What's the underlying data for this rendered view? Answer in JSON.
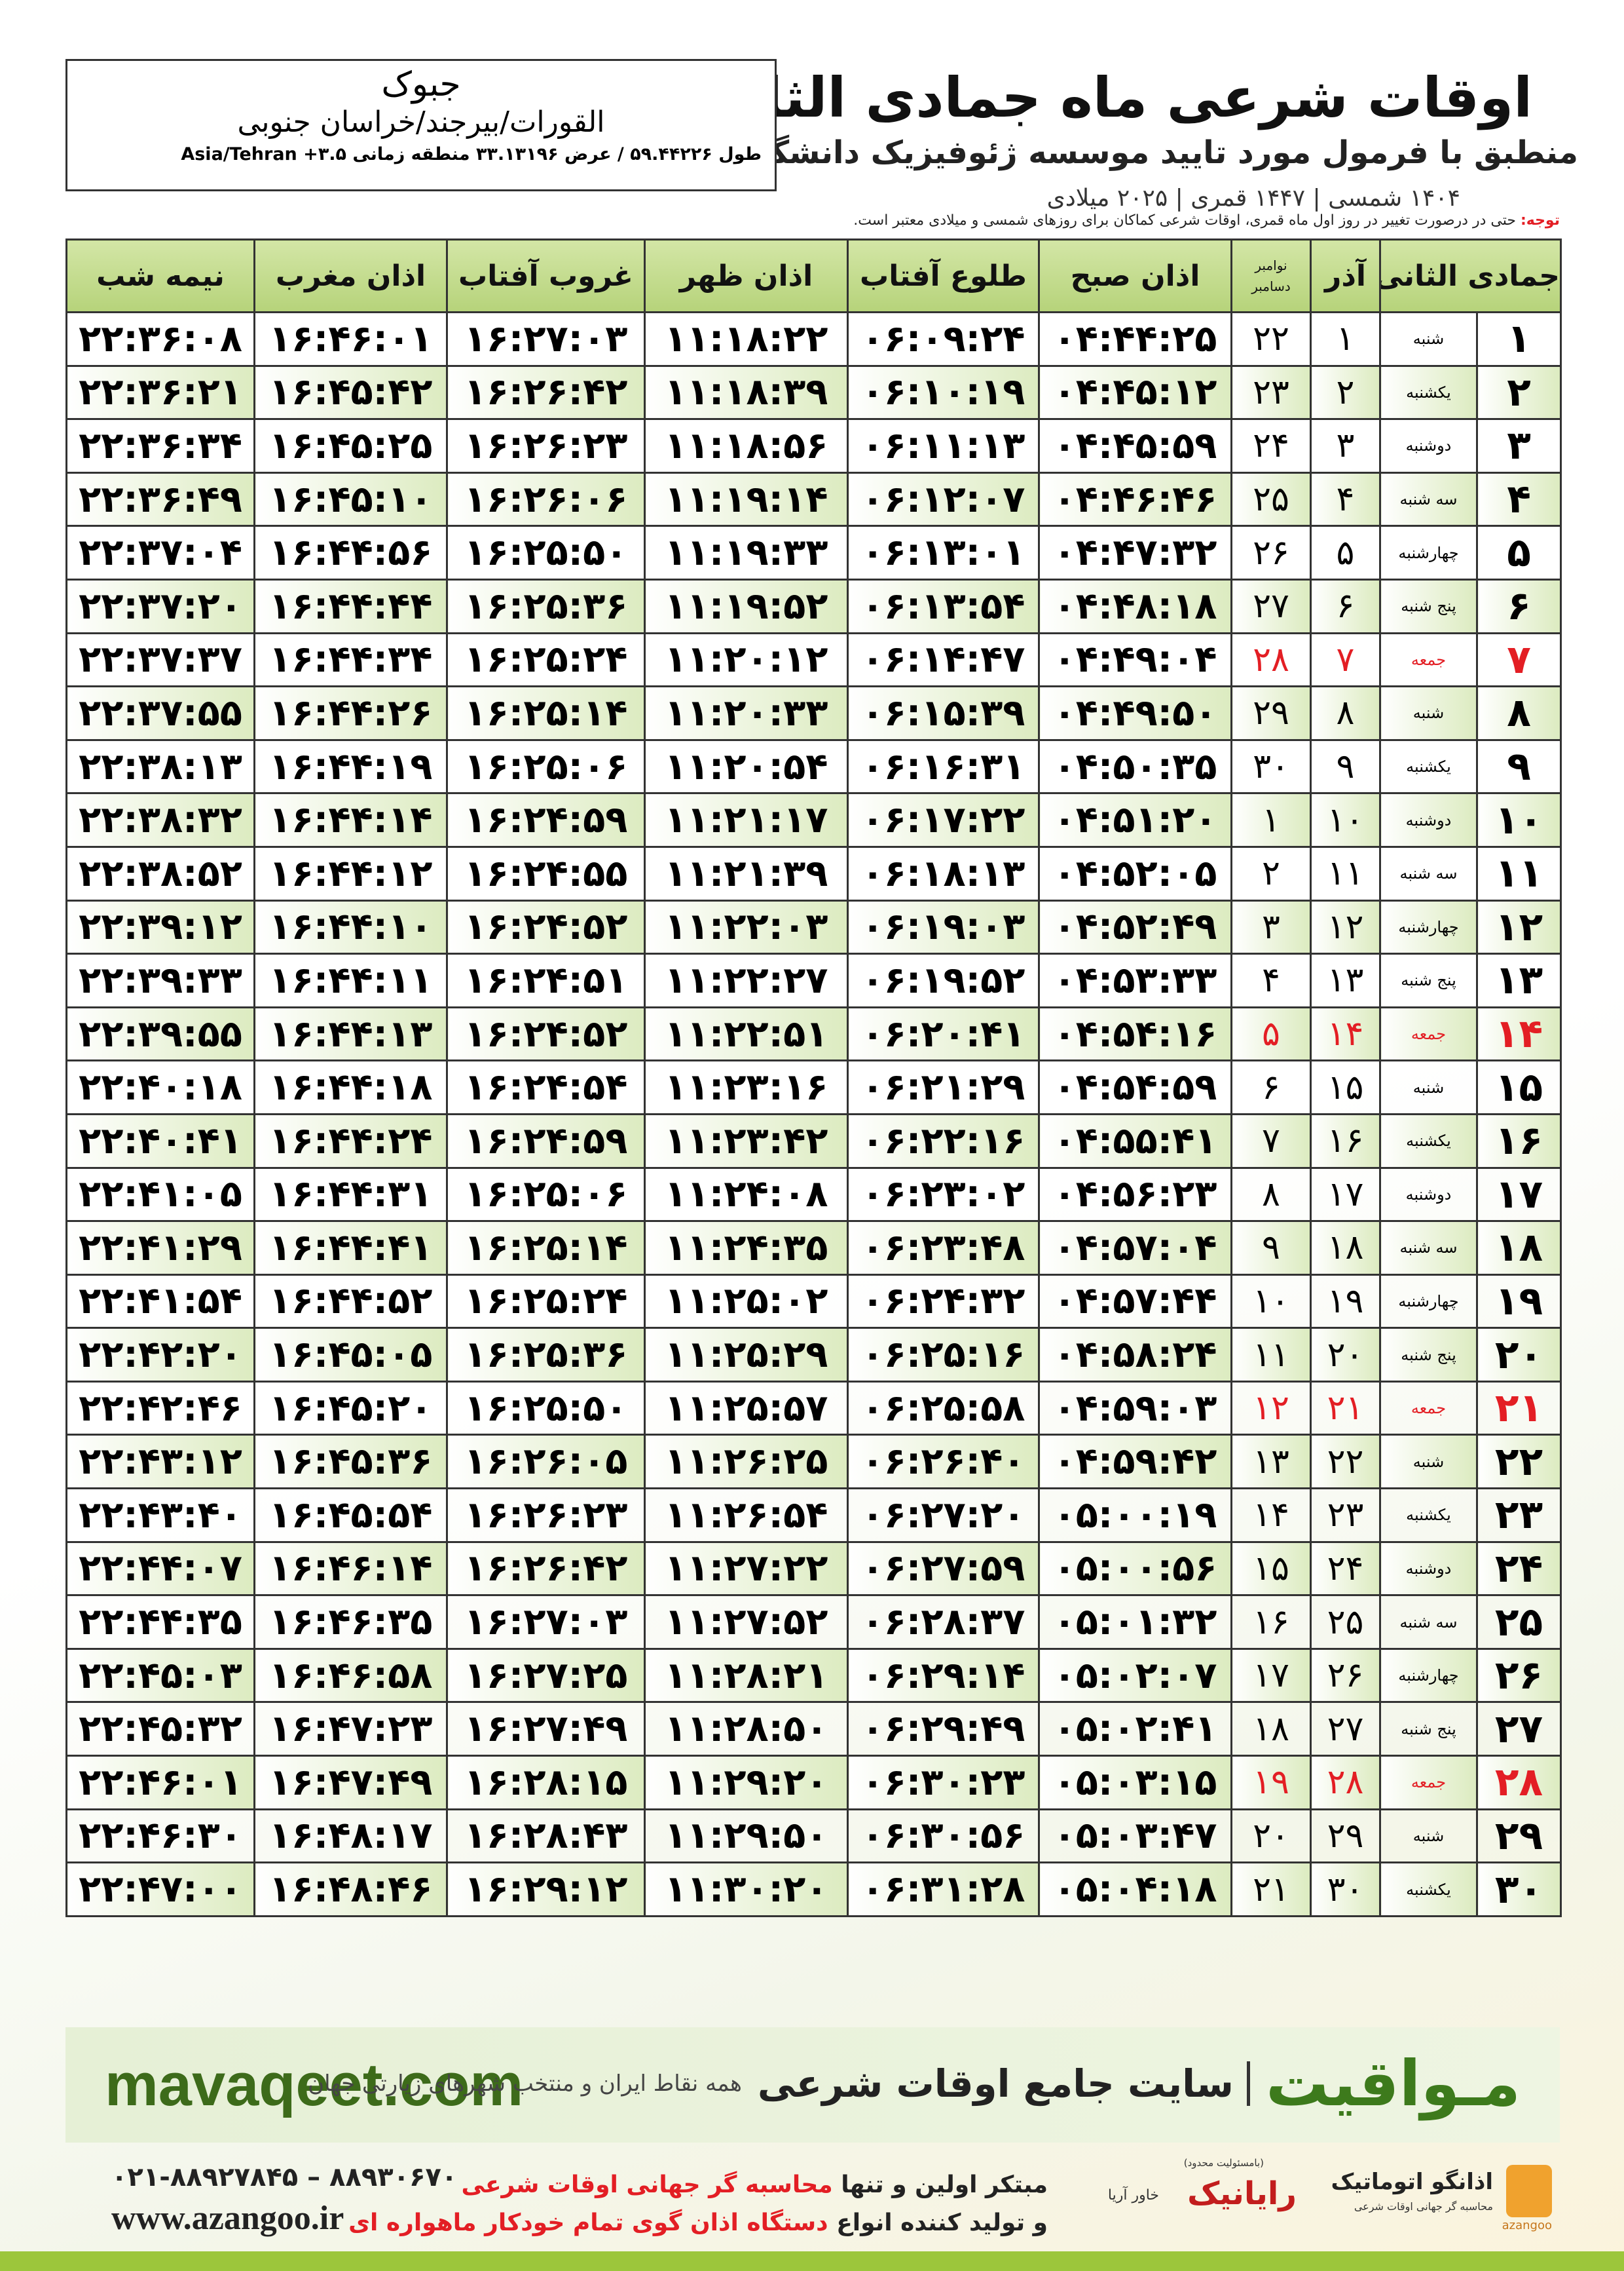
{
  "header": {
    "title": "اوقات شرعی ماه جمادی الثانی",
    "subtitle": "منطبق با فرمول مورد تایید موسسه ژئوفیزیک دانشگاه تهران",
    "dates": "۱۴۰۴ شمسی | ۱۴۴۷ قمری | ۲۰۲۵ میلادی"
  },
  "location": {
    "city": "جبوک",
    "region": "القورات/بیرجند/خراسان جنوبی",
    "coords": "طول ۵۹.۴۴۲۲۶ / عرض ۳۳.۱۳۱۹۶ منطقه زمانی ۳.۵+ Asia/Tehran"
  },
  "note": {
    "label": "توجه:",
    "text": "حتی در درصورت تغییر در روز اول ماه قمری، اوقات شرعی کماکان برای روزهای شمسی و میلادی معتبر است."
  },
  "table": {
    "columns": [
      "جمادی الثانی",
      "آذر",
      [
        "نوامبر",
        "دسامبر"
      ],
      "اذان صبح",
      "طلوع آفتاب",
      "اذان ظهر",
      "غروب آفتاب",
      "اذان مغرب",
      "نیمه شب"
    ],
    "rows": [
      [
        "۱",
        "شنبه",
        "۱",
        "۲۲",
        "۰۴:۴۴:۲۵",
        "۰۶:۰۹:۲۴",
        "۱۱:۱۸:۲۲",
        "۱۶:۲۷:۰۳",
        "۱۶:۴۶:۰۱",
        "۲۲:۳۶:۰۸"
      ],
      [
        "۲",
        "یکشنبه",
        "۲",
        "۲۳",
        "۰۴:۴۵:۱۲",
        "۰۶:۱۰:۱۹",
        "۱۱:۱۸:۳۹",
        "۱۶:۲۶:۴۲",
        "۱۶:۴۵:۴۲",
        "۲۲:۳۶:۲۱"
      ],
      [
        "۳",
        "دوشنبه",
        "۳",
        "۲۴",
        "۰۴:۴۵:۵۹",
        "۰۶:۱۱:۱۳",
        "۱۱:۱۸:۵۶",
        "۱۶:۲۶:۲۳",
        "۱۶:۴۵:۲۵",
        "۲۲:۳۶:۳۴"
      ],
      [
        "۴",
        "سه شنبه",
        "۴",
        "۲۵",
        "۰۴:۴۶:۴۶",
        "۰۶:۱۲:۰۷",
        "۱۱:۱۹:۱۴",
        "۱۶:۲۶:۰۶",
        "۱۶:۴۵:۱۰",
        "۲۲:۳۶:۴۹"
      ],
      [
        "۵",
        "چهارشنبه",
        "۵",
        "۲۶",
        "۰۴:۴۷:۳۲",
        "۰۶:۱۳:۰۱",
        "۱۱:۱۹:۳۳",
        "۱۶:۲۵:۵۰",
        "۱۶:۴۴:۵۶",
        "۲۲:۳۷:۰۴"
      ],
      [
        "۶",
        "پنج شنبه",
        "۶",
        "۲۷",
        "۰۴:۴۸:۱۸",
        "۰۶:۱۳:۵۴",
        "۱۱:۱۹:۵۲",
        "۱۶:۲۵:۳۶",
        "۱۶:۴۴:۴۴",
        "۲۲:۳۷:۲۰"
      ],
      [
        "۷",
        "جمعه",
        "۷",
        "۲۸",
        "۰۴:۴۹:۰۴",
        "۰۶:۱۴:۴۷",
        "۱۱:۲۰:۱۲",
        "۱۶:۲۵:۲۴",
        "۱۶:۴۴:۳۴",
        "۲۲:۳۷:۳۷"
      ],
      [
        "۸",
        "شنبه",
        "۸",
        "۲۹",
        "۰۴:۴۹:۵۰",
        "۰۶:۱۵:۳۹",
        "۱۱:۲۰:۳۳",
        "۱۶:۲۵:۱۴",
        "۱۶:۴۴:۲۶",
        "۲۲:۳۷:۵۵"
      ],
      [
        "۹",
        "یکشنبه",
        "۹",
        "۳۰",
        "۰۴:۵۰:۳۵",
        "۰۶:۱۶:۳۱",
        "۱۱:۲۰:۵۴",
        "۱۶:۲۵:۰۶",
        "۱۶:۴۴:۱۹",
        "۲۲:۳۸:۱۳"
      ],
      [
        "۱۰",
        "دوشنبه",
        "۱۰",
        "۱",
        "۰۴:۵۱:۲۰",
        "۰۶:۱۷:۲۲",
        "۱۱:۲۱:۱۷",
        "۱۶:۲۴:۵۹",
        "۱۶:۴۴:۱۴",
        "۲۲:۳۸:۳۲"
      ],
      [
        "۱۱",
        "سه شنبه",
        "۱۱",
        "۲",
        "۰۴:۵۲:۰۵",
        "۰۶:۱۸:۱۳",
        "۱۱:۲۱:۳۹",
        "۱۶:۲۴:۵۵",
        "۱۶:۴۴:۱۲",
        "۲۲:۳۸:۵۲"
      ],
      [
        "۱۲",
        "چهارشنبه",
        "۱۲",
        "۳",
        "۰۴:۵۲:۴۹",
        "۰۶:۱۹:۰۳",
        "۱۱:۲۲:۰۳",
        "۱۶:۲۴:۵۲",
        "۱۶:۴۴:۱۰",
        "۲۲:۳۹:۱۲"
      ],
      [
        "۱۳",
        "پنج شنبه",
        "۱۳",
        "۴",
        "۰۴:۵۳:۳۳",
        "۰۶:۱۹:۵۲",
        "۱۱:۲۲:۲۷",
        "۱۶:۲۴:۵۱",
        "۱۶:۴۴:۱۱",
        "۲۲:۳۹:۳۳"
      ],
      [
        "۱۴",
        "جمعه",
        "۱۴",
        "۵",
        "۰۴:۵۴:۱۶",
        "۰۶:۲۰:۴۱",
        "۱۱:۲۲:۵۱",
        "۱۶:۲۴:۵۲",
        "۱۶:۴۴:۱۳",
        "۲۲:۳۹:۵۵"
      ],
      [
        "۱۵",
        "شنبه",
        "۱۵",
        "۶",
        "۰۴:۵۴:۵۹",
        "۰۶:۲۱:۲۹",
        "۱۱:۲۳:۱۶",
        "۱۶:۲۴:۵۴",
        "۱۶:۴۴:۱۸",
        "۲۲:۴۰:۱۸"
      ],
      [
        "۱۶",
        "یکشنبه",
        "۱۶",
        "۷",
        "۰۴:۵۵:۴۱",
        "۰۶:۲۲:۱۶",
        "۱۱:۲۳:۴۲",
        "۱۶:۲۴:۵۹",
        "۱۶:۴۴:۲۴",
        "۲۲:۴۰:۴۱"
      ],
      [
        "۱۷",
        "دوشنبه",
        "۱۷",
        "۸",
        "۰۴:۵۶:۲۳",
        "۰۶:۲۳:۰۲",
        "۱۱:۲۴:۰۸",
        "۱۶:۲۵:۰۶",
        "۱۶:۴۴:۳۱",
        "۲۲:۴۱:۰۵"
      ],
      [
        "۱۸",
        "سه شنبه",
        "۱۸",
        "۹",
        "۰۴:۵۷:۰۴",
        "۰۶:۲۳:۴۸",
        "۱۱:۲۴:۳۵",
        "۱۶:۲۵:۱۴",
        "۱۶:۴۴:۴۱",
        "۲۲:۴۱:۲۹"
      ],
      [
        "۱۹",
        "چهارشنبه",
        "۱۹",
        "۱۰",
        "۰۴:۵۷:۴۴",
        "۰۶:۲۴:۳۲",
        "۱۱:۲۵:۰۲",
        "۱۶:۲۵:۲۴",
        "۱۶:۴۴:۵۲",
        "۲۲:۴۱:۵۴"
      ],
      [
        "۲۰",
        "پنج شنبه",
        "۲۰",
        "۱۱",
        "۰۴:۵۸:۲۴",
        "۰۶:۲۵:۱۶",
        "۱۱:۲۵:۲۹",
        "۱۶:۲۵:۳۶",
        "۱۶:۴۵:۰۵",
        "۲۲:۴۲:۲۰"
      ],
      [
        "۲۱",
        "جمعه",
        "۲۱",
        "۱۲",
        "۰۴:۵۹:۰۳",
        "۰۶:۲۵:۵۸",
        "۱۱:۲۵:۵۷",
        "۱۶:۲۵:۵۰",
        "۱۶:۴۵:۲۰",
        "۲۲:۴۲:۴۶"
      ],
      [
        "۲۲",
        "شنبه",
        "۲۲",
        "۱۳",
        "۰۴:۵۹:۴۲",
        "۰۶:۲۶:۴۰",
        "۱۱:۲۶:۲۵",
        "۱۶:۲۶:۰۵",
        "۱۶:۴۵:۳۶",
        "۲۲:۴۳:۱۲"
      ],
      [
        "۲۳",
        "یکشنبه",
        "۲۳",
        "۱۴",
        "۰۵:۰۰:۱۹",
        "۰۶:۲۷:۲۰",
        "۱۱:۲۶:۵۴",
        "۱۶:۲۶:۲۳",
        "۱۶:۴۵:۵۴",
        "۲۲:۴۳:۴۰"
      ],
      [
        "۲۴",
        "دوشنبه",
        "۲۴",
        "۱۵",
        "۰۵:۰۰:۵۶",
        "۰۶:۲۷:۵۹",
        "۱۱:۲۷:۲۲",
        "۱۶:۲۶:۴۲",
        "۱۶:۴۶:۱۴",
        "۲۲:۴۴:۰۷"
      ],
      [
        "۲۵",
        "سه شنبه",
        "۲۵",
        "۱۶",
        "۰۵:۰۱:۳۲",
        "۰۶:۲۸:۳۷",
        "۱۱:۲۷:۵۲",
        "۱۶:۲۷:۰۳",
        "۱۶:۴۶:۳۵",
        "۲۲:۴۴:۳۵"
      ],
      [
        "۲۶",
        "چهارشنبه",
        "۲۶",
        "۱۷",
        "۰۵:۰۲:۰۷",
        "۰۶:۲۹:۱۴",
        "۱۱:۲۸:۲۱",
        "۱۶:۲۷:۲۵",
        "۱۶:۴۶:۵۸",
        "۲۲:۴۵:۰۳"
      ],
      [
        "۲۷",
        "پنج شنبه",
        "۲۷",
        "۱۸",
        "۰۵:۰۲:۴۱",
        "۰۶:۲۹:۴۹",
        "۱۱:۲۸:۵۰",
        "۱۶:۲۷:۴۹",
        "۱۶:۴۷:۲۳",
        "۲۲:۴۵:۳۲"
      ],
      [
        "۲۸",
        "جمعه",
        "۲۸",
        "۱۹",
        "۰۵:۰۳:۱۵",
        "۰۶:۳۰:۲۳",
        "۱۱:۲۹:۲۰",
        "۱۶:۲۸:۱۵",
        "۱۶:۴۷:۴۹",
        "۲۲:۴۶:۰۱"
      ],
      [
        "۲۹",
        "شنبه",
        "۲۹",
        "۲۰",
        "۰۵:۰۳:۴۷",
        "۰۶:۳۰:۵۶",
        "۱۱:۲۹:۵۰",
        "۱۶:۲۸:۴۳",
        "۱۶:۴۸:۱۷",
        "۲۲:۴۶:۳۰"
      ],
      [
        "۳۰",
        "یکشنبه",
        "۳۰",
        "۲۱",
        "۰۵:۰۴:۱۸",
        "۰۶:۳۱:۲۸",
        "۱۱:۳۰:۲۰",
        "۱۶:۲۹:۱۲",
        "۱۶:۴۸:۴۶",
        "۲۲:۴۷:۰۰"
      ]
    ],
    "row_colors": [
      "#000000",
      "#000000",
      "#000000",
      "#000000",
      "#000000",
      "#000000",
      "#e31e24",
      "#000000",
      "#000000",
      "#000000",
      "#000000",
      "#000000",
      "#000000",
      "#e31e24",
      "#000000",
      "#000000",
      "#000000",
      "#000000",
      "#000000",
      "#000000",
      "#e31e24",
      "#000000",
      "#000000",
      "#000000",
      "#000000",
      "#000000",
      "#000000",
      "#e31e24",
      "#000000",
      "#000000"
    ]
  },
  "banner": {
    "site": "mavaqeet.com",
    "brand": "مـواقیت",
    "slogan": "سایت جامع اوقات شرعی",
    "coverage": "همه نقاط ایران و منتخب شهرهای زیارتی جهان"
  },
  "contact": {
    "phone": "۰۲۱-۸۸۹۲۷۸۴۵ – ۸۸۹۳۰۶۷۰",
    "web": "www.azangoo.ir",
    "line1": [
      "مبتکر اولین و تنها",
      "محاسبه گر جهانی اوقات شرعی"
    ],
    "line2": [
      "و تولید کننده انواع",
      "دستگاه اذان گوی تمام خودکار ماهواره ای"
    ]
  },
  "logos": {
    "rayanik": "رایانیک",
    "khavar": "خاور آریا",
    "limited": "(بامسئولیت محدود)",
    "azangoo": "اذانگو اتوماتیک",
    "azangoo_sub": "محاسبه گر جهانی اوقات شرعی",
    "azangoo_en": "azangoo"
  }
}
